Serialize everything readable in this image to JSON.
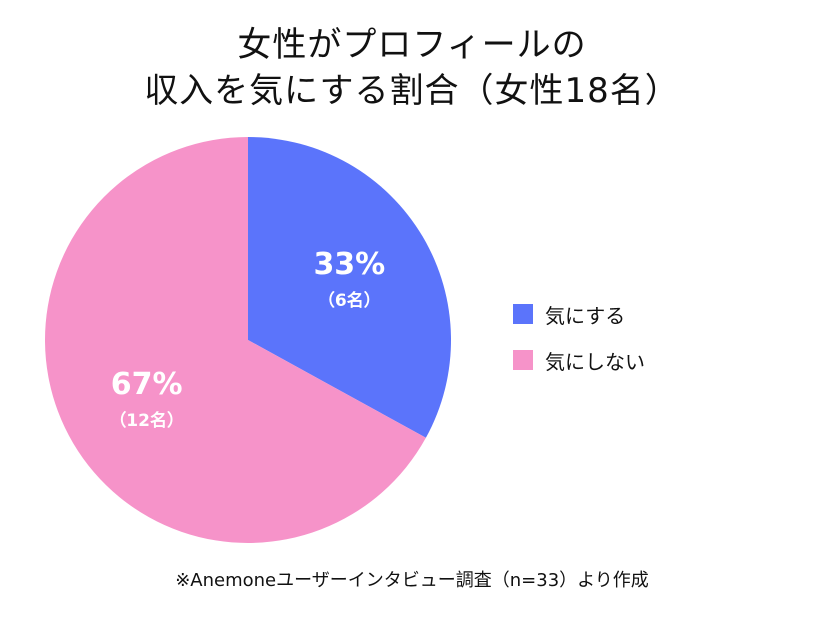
{
  "chart_data": {
    "type": "pie",
    "title_line1": "女性がプロフィールの",
    "title_line2": "収入を気にする割合（女性18名）",
    "slices": [
      {
        "name": "気にする",
        "value": 33,
        "value_label": "33%",
        "count_label": "（6名）",
        "color": "#5b74fb"
      },
      {
        "name": "気にしない",
        "value": 67,
        "value_label": "67%",
        "count_label": "（12名）",
        "color": "#f693c9"
      }
    ],
    "legend_position": "right",
    "footnote": "※Anemoneユーザーインタビュー調査（n=33）より作成"
  }
}
